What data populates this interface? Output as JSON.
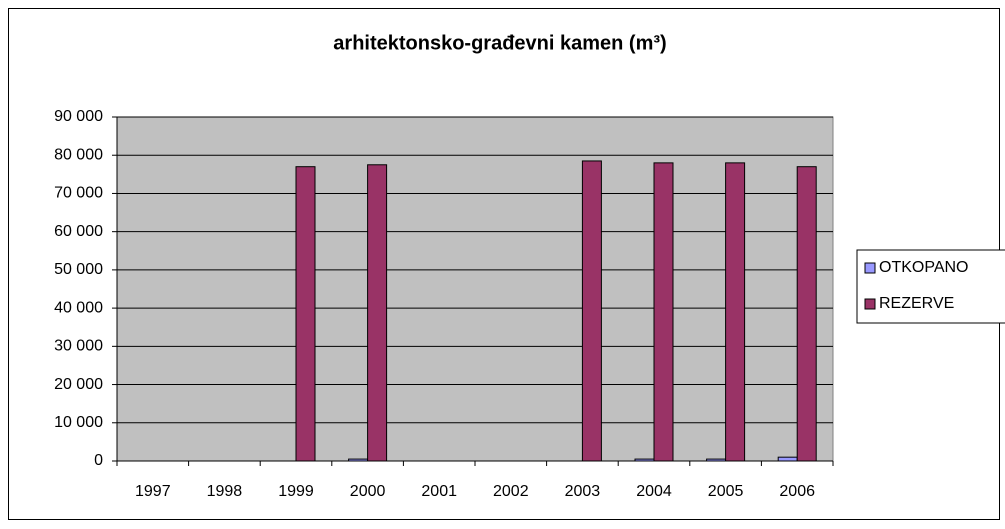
{
  "chart_data": {
    "type": "bar",
    "title": "arhitektonsko-građevni kamen  (m³)",
    "categories": [
      "1997",
      "1998",
      "1999",
      "2000",
      "2001",
      "2002",
      "2003",
      "2004",
      "2005",
      "2006"
    ],
    "series": [
      {
        "name": "OTKOPANO",
        "color": "#9999ff",
        "values": [
          null,
          null,
          null,
          500,
          null,
          null,
          null,
          500,
          500,
          1000
        ]
      },
      {
        "name": "REZERVE",
        "color": "#993366",
        "values": [
          null,
          null,
          77000,
          77500,
          null,
          null,
          78500,
          78000,
          78000,
          77000
        ]
      }
    ],
    "ylim": [
      0,
      90000
    ],
    "yticks": [
      0,
      {
        "value": 10000,
        "label": "10 000"
      },
      {
        "value": 20000,
        "label": "20 000"
      },
      {
        "value": 30000,
        "label": "30 000"
      },
      {
        "value": 40000,
        "label": "40 000"
      },
      {
        "value": 50000,
        "label": "50 000"
      },
      {
        "value": 60000,
        "label": "60 000"
      },
      {
        "value": 70000,
        "label": "70 000"
      },
      {
        "value": 80000,
        "label": "80 000"
      },
      {
        "value": 90000,
        "label": "90 000"
      }
    ],
    "grid": true,
    "legend": "right",
    "plot_background": "#c0c0c0"
  }
}
